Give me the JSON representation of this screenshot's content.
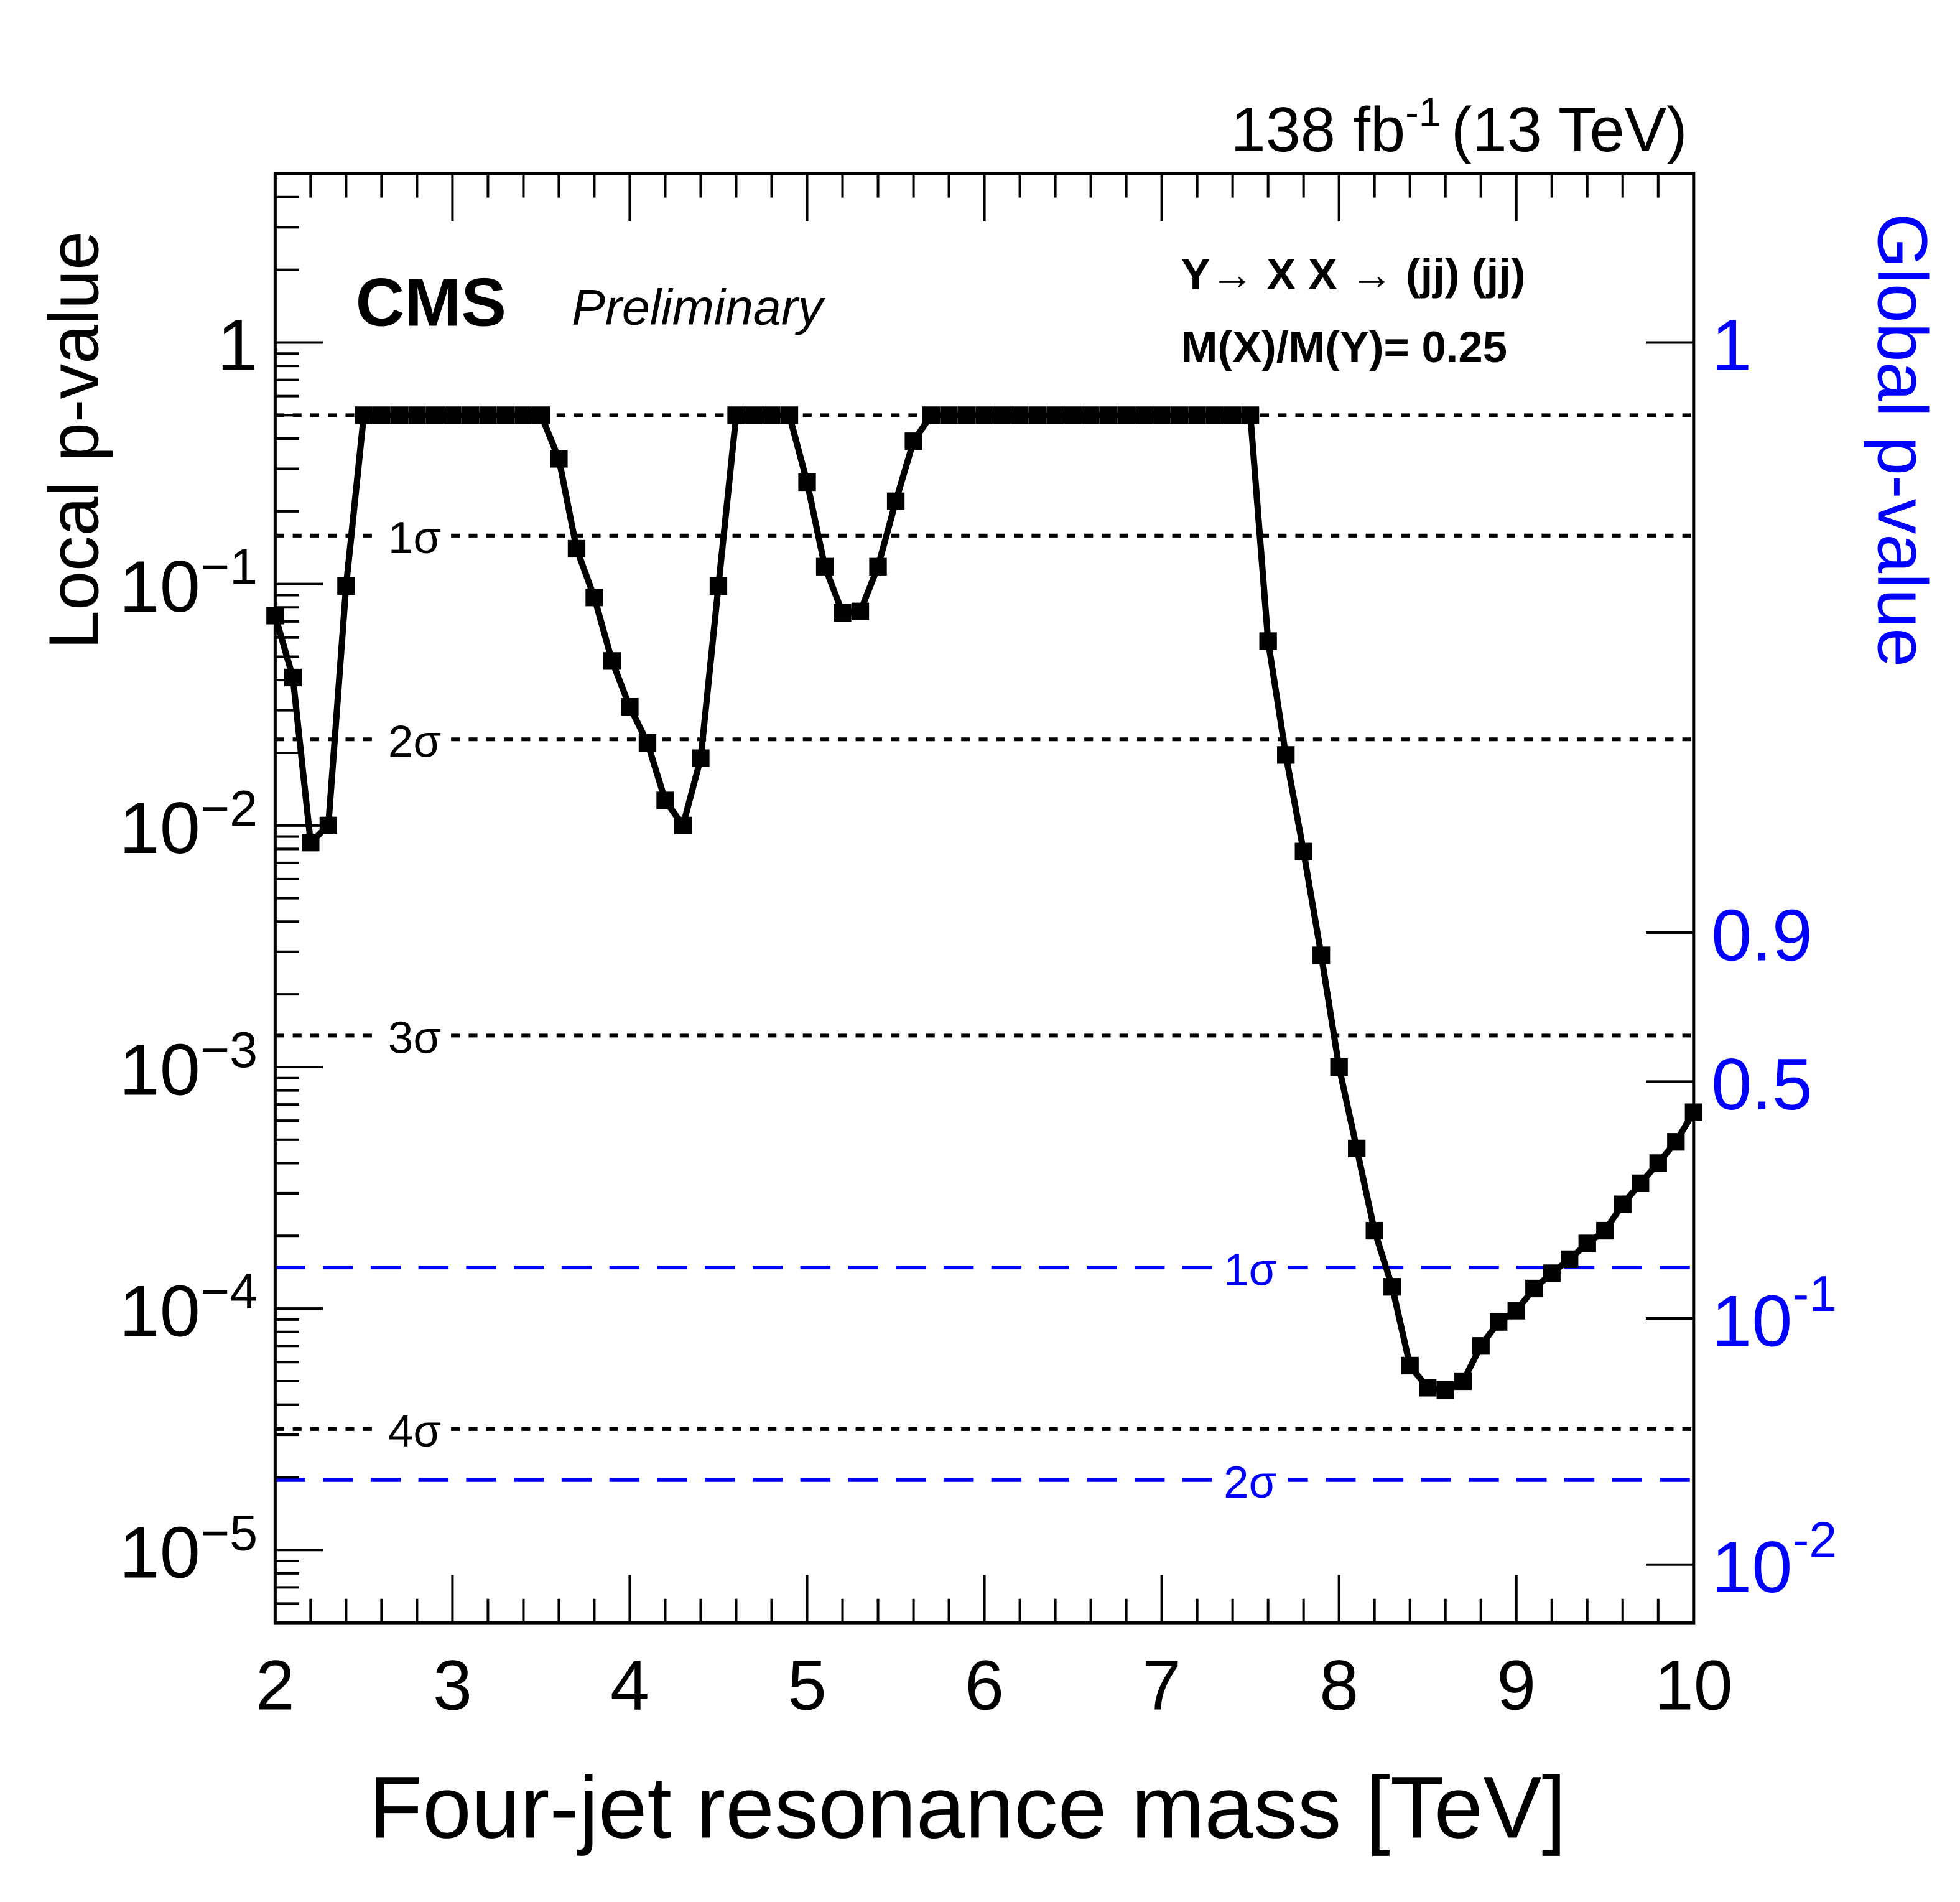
{
  "chart_data": {
    "type": "line",
    "header_right": {
      "lumi": "138 fb",
      "lumi_exp": "-1",
      "energy": "(13 TeV)"
    },
    "experiment": "CMS",
    "status": "Preliminary",
    "annotation_lines": [
      "Y→ X X  → (jj) (jj)",
      "M(X)/M(Y)= 0.25"
    ],
    "xlabel": "Four-jet resonance mass [TeV]",
    "ylabel": "Local p-value",
    "ylabel_right": "Global p-value",
    "xlim": [
      2,
      10
    ],
    "ylim": [
      5e-06,
      5
    ],
    "yscale": "log",
    "x_ticks": [
      "2",
      "3",
      "4",
      "5",
      "6",
      "7",
      "8",
      "9",
      "10"
    ],
    "y_ticks": [
      {
        "value": 1,
        "label": "1",
        "exp": ""
      },
      {
        "value": 0.1,
        "label": "10",
        "exp": "−1"
      },
      {
        "value": 0.01,
        "label": "10",
        "exp": "−2"
      },
      {
        "value": 0.001,
        "label": "10",
        "exp": "−3"
      },
      {
        "value": 0.0001,
        "label": "10",
        "exp": "−4"
      },
      {
        "value": 1e-05,
        "label": "10",
        "exp": "−5"
      }
    ],
    "right_axis_ticks": [
      {
        "global": 1,
        "local_equiv": 1,
        "label": "1",
        "exp": ""
      },
      {
        "global": 0.9,
        "local_equiv": 0.0036,
        "label": "0.9",
        "exp": ""
      },
      {
        "global": 0.5,
        "local_equiv": 0.00087,
        "label": "0.5",
        "exp": ""
      },
      {
        "global": 0.1,
        "local_equiv": 9.1e-05,
        "label": "10",
        "exp": "-1"
      },
      {
        "global": 0.01,
        "local_equiv": 8.7e-06,
        "label": "10",
        "exp": "-2"
      }
    ],
    "local_sigma_lines": [
      {
        "label": "1σ",
        "p": 0.1587
      },
      {
        "label": "2σ",
        "p": 0.02275
      },
      {
        "label": "3σ",
        "p": 0.00135
      },
      {
        "label": "4σ",
        "p": 3.17e-05
      }
    ],
    "half_line": {
      "p": 0.5
    },
    "global_sigma_lines": [
      {
        "label": "1σ",
        "local_equiv": 0.000148
      },
      {
        "label": "2σ",
        "local_equiv": 1.95e-05
      }
    ],
    "colors": {
      "data": "#000000",
      "global": "#0000ff"
    },
    "series": [
      {
        "name": "Local p-value",
        "x": [
          2.0,
          2.1,
          2.2,
          2.3,
          2.4,
          2.5,
          2.6,
          2.7,
          2.8,
          2.9,
          3.0,
          3.1,
          3.2,
          3.3,
          3.4,
          3.5,
          3.6,
          3.7,
          3.8,
          3.9,
          4.0,
          4.1,
          4.2,
          4.3,
          4.4,
          4.5,
          4.6,
          4.7,
          4.8,
          4.9,
          5.0,
          5.1,
          5.2,
          5.3,
          5.4,
          5.5,
          5.6,
          5.7,
          5.8,
          5.9,
          6.0,
          6.1,
          6.2,
          6.3,
          6.4,
          6.5,
          6.6,
          6.7,
          6.8,
          6.9,
          7.0,
          7.1,
          7.2,
          7.3,
          7.4,
          7.5,
          7.6,
          7.7,
          7.8,
          7.9,
          8.0,
          8.1,
          8.2,
          8.3,
          8.4,
          8.5,
          8.6,
          8.7,
          8.8,
          8.9,
          9.0,
          9.1,
          9.2,
          9.3,
          9.4,
          9.5,
          9.6,
          9.7,
          9.8,
          9.9,
          10.0
        ],
        "y": [
          0.074,
          0.041,
          0.0085,
          0.01,
          0.098,
          0.5,
          0.5,
          0.5,
          0.5,
          0.5,
          0.5,
          0.5,
          0.5,
          0.5,
          0.5,
          0.5,
          0.33,
          0.14,
          0.088,
          0.048,
          0.031,
          0.022,
          0.0127,
          0.01,
          0.019,
          0.098,
          0.5,
          0.5,
          0.5,
          0.5,
          0.264,
          0.118,
          0.076,
          0.077,
          0.118,
          0.22,
          0.39,
          0.5,
          0.5,
          0.5,
          0.5,
          0.5,
          0.5,
          0.5,
          0.5,
          0.5,
          0.5,
          0.5,
          0.5,
          0.5,
          0.5,
          0.5,
          0.5,
          0.5,
          0.5,
          0.5,
          0.058,
          0.0196,
          0.0078,
          0.0029,
          0.001,
          0.00046,
          0.00021,
          0.000123,
          5.8e-05,
          4.7e-05,
          4.6e-05,
          5e-05,
          7e-05,
          8.8e-05,
          9.8e-05,
          0.000121,
          0.00014,
          0.00016,
          0.000186,
          0.00021,
          0.00027,
          0.00033,
          0.0004,
          0.00049,
          0.00065
        ]
      }
    ]
  }
}
